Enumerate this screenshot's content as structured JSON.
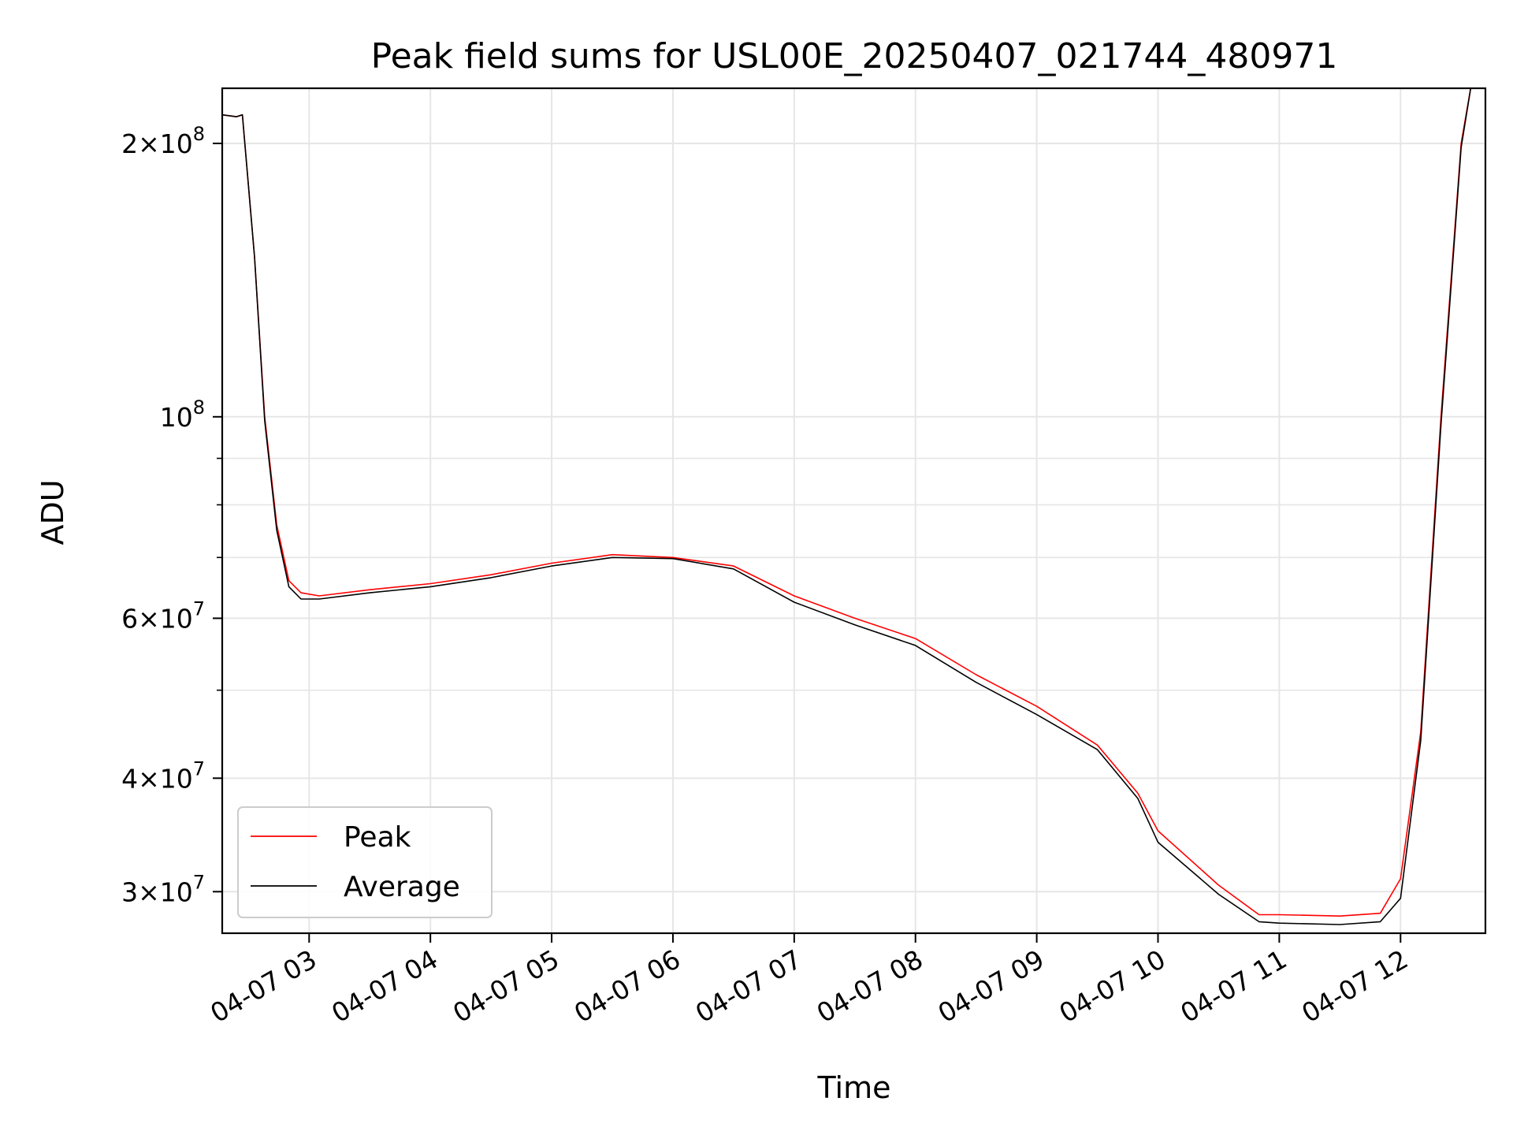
{
  "chart_data": {
    "type": "line",
    "title": "Peak field sums for USL00E_20250407_021744_480971",
    "xlabel": "Time",
    "ylabel": "ADU",
    "yscale": "log",
    "grid": true,
    "legend_position": "lower-left",
    "xlim": [
      "2025-04-07 02:17",
      "2025-04-07 12:42"
    ],
    "ylim": [
      27000000,
      230000000
    ],
    "x_ticks": [
      "04-07 03",
      "04-07 04",
      "04-07 05",
      "04-07 06",
      "04-07 07",
      "04-07 08",
      "04-07 09",
      "04-07 10",
      "04-07 11",
      "04-07 12"
    ],
    "y_major_ticks": [
      {
        "value": 30000000,
        "base": "3",
        "exp": "7"
      },
      {
        "value": 40000000,
        "base": "4",
        "exp": "7"
      },
      {
        "value": 60000000,
        "base": "6",
        "exp": "7"
      },
      {
        "value": 100000000,
        "base": "",
        "exp": "8"
      },
      {
        "value": 200000000,
        "base": "2",
        "exp": "8"
      }
    ],
    "y_minor_ticks": [
      50000000,
      70000000,
      80000000,
      90000000
    ],
    "series": [
      {
        "name": "Peak",
        "color": "#ff0000",
        "x": [
          "2025-04-07 02:17",
          "2025-04-07 02:24",
          "2025-04-07 02:27",
          "2025-04-07 02:33",
          "2025-04-07 02:38",
          "2025-04-07 02:44",
          "2025-04-07 02:50",
          "2025-04-07 02:56",
          "2025-04-07 03:05",
          "2025-04-07 03:30",
          "2025-04-07 04:00",
          "2025-04-07 04:30",
          "2025-04-07 05:00",
          "2025-04-07 05:30",
          "2025-04-07 06:00",
          "2025-04-07 06:30",
          "2025-04-07 07:00",
          "2025-04-07 07:30",
          "2025-04-07 08:00",
          "2025-04-07 08:30",
          "2025-04-07 09:00",
          "2025-04-07 09:30",
          "2025-04-07 09:50",
          "2025-04-07 10:00",
          "2025-04-07 10:30",
          "2025-04-07 10:50",
          "2025-04-07 11:00",
          "2025-04-07 11:30",
          "2025-04-07 11:50",
          "2025-04-07 12:00",
          "2025-04-07 12:10",
          "2025-04-07 12:20",
          "2025-04-07 12:30",
          "2025-04-07 12:35"
        ],
        "values": [
          215000000,
          214000000,
          215000000,
          150000000,
          100000000,
          76000000,
          66000000,
          64000000,
          63500000,
          64500000,
          65500000,
          67000000,
          69000000,
          70500000,
          70000000,
          68500000,
          63500000,
          60000000,
          57000000,
          52000000,
          48000000,
          43500000,
          38500000,
          35000000,
          30500000,
          28300000,
          28300000,
          28200000,
          28400000,
          31000000,
          45000000,
          100000000,
          200000000,
          232000000
        ]
      },
      {
        "name": "Average",
        "color": "#000000",
        "x": [
          "2025-04-07 02:17",
          "2025-04-07 02:24",
          "2025-04-07 02:27",
          "2025-04-07 02:33",
          "2025-04-07 02:38",
          "2025-04-07 02:44",
          "2025-04-07 02:50",
          "2025-04-07 02:56",
          "2025-04-07 03:05",
          "2025-04-07 03:30",
          "2025-04-07 04:00",
          "2025-04-07 04:30",
          "2025-04-07 05:00",
          "2025-04-07 05:30",
          "2025-04-07 06:00",
          "2025-04-07 06:30",
          "2025-04-07 07:00",
          "2025-04-07 07:30",
          "2025-04-07 08:00",
          "2025-04-07 08:30",
          "2025-04-07 09:00",
          "2025-04-07 09:30",
          "2025-04-07 09:50",
          "2025-04-07 10:00",
          "2025-04-07 10:30",
          "2025-04-07 10:50",
          "2025-04-07 11:00",
          "2025-04-07 11:30",
          "2025-04-07 11:50",
          "2025-04-07 12:00",
          "2025-04-07 12:10",
          "2025-04-07 12:20",
          "2025-04-07 12:30",
          "2025-04-07 12:35"
        ],
        "values": [
          215000000,
          214000000,
          215000000,
          150000000,
          99000000,
          75000000,
          65000000,
          63000000,
          63000000,
          64000000,
          65000000,
          66500000,
          68500000,
          70000000,
          69800000,
          68000000,
          62500000,
          59000000,
          56000000,
          51000000,
          47000000,
          43000000,
          38000000,
          34000000,
          29800000,
          27800000,
          27700000,
          27600000,
          27800000,
          29500000,
          44000000,
          98000000,
          198000000,
          232000000
        ]
      }
    ],
    "legend": [
      {
        "label": "Peak",
        "color": "#ff0000"
      },
      {
        "label": "Average",
        "color": "#000000"
      }
    ]
  }
}
